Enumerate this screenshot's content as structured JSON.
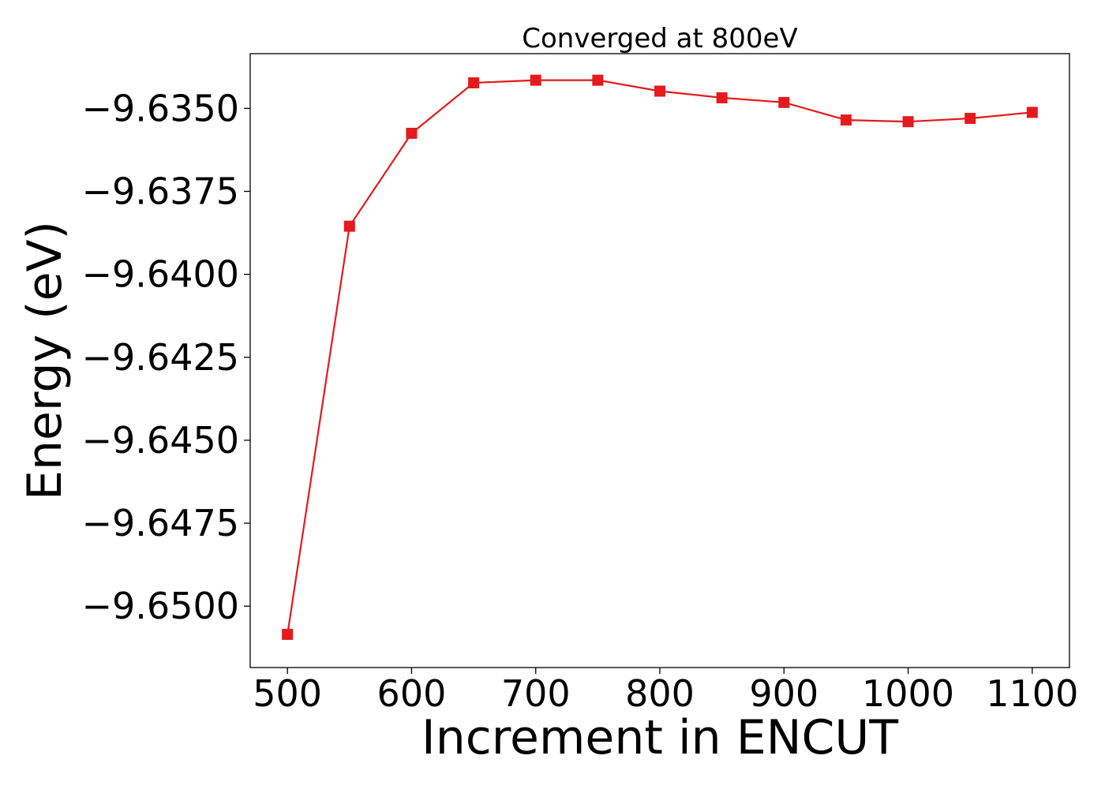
{
  "chart_data": {
    "type": "line",
    "title": "Converged at 800eV",
    "xlabel": "Increment in ENCUT",
    "ylabel": "Energy (eV)",
    "x": [
      500,
      550,
      600,
      650,
      700,
      750,
      800,
      850,
      900,
      950,
      1000,
      1050,
      1100
    ],
    "series": [
      {
        "values": [
          -9.65085,
          -9.63855,
          -9.63575,
          -9.63423,
          -9.63415,
          -9.63415,
          -9.63448,
          -9.63468,
          -9.63482,
          -9.63535,
          -9.6354,
          -9.6353,
          -9.63512
        ],
        "color": "#e41a1c",
        "marker": "square"
      }
    ],
    "xlim": [
      470,
      1130
    ],
    "ylim": [
      -9.65185,
      -9.63335
    ],
    "xticks": [
      500,
      600,
      700,
      800,
      900,
      1000,
      1100
    ],
    "xtick_labels": [
      "500",
      "600",
      "700",
      "800",
      "900",
      "1000",
      "1100"
    ],
    "yticks": [
      -9.635,
      -9.6375,
      -9.64,
      -9.6425,
      -9.645,
      -9.6475,
      -9.65
    ],
    "ytick_labels": [
      "−9.6350",
      "−9.6375",
      "−9.6400",
      "−9.6425",
      "−9.6450",
      "−9.6475",
      "−9.6500"
    ],
    "grid": false,
    "legend": false
  }
}
